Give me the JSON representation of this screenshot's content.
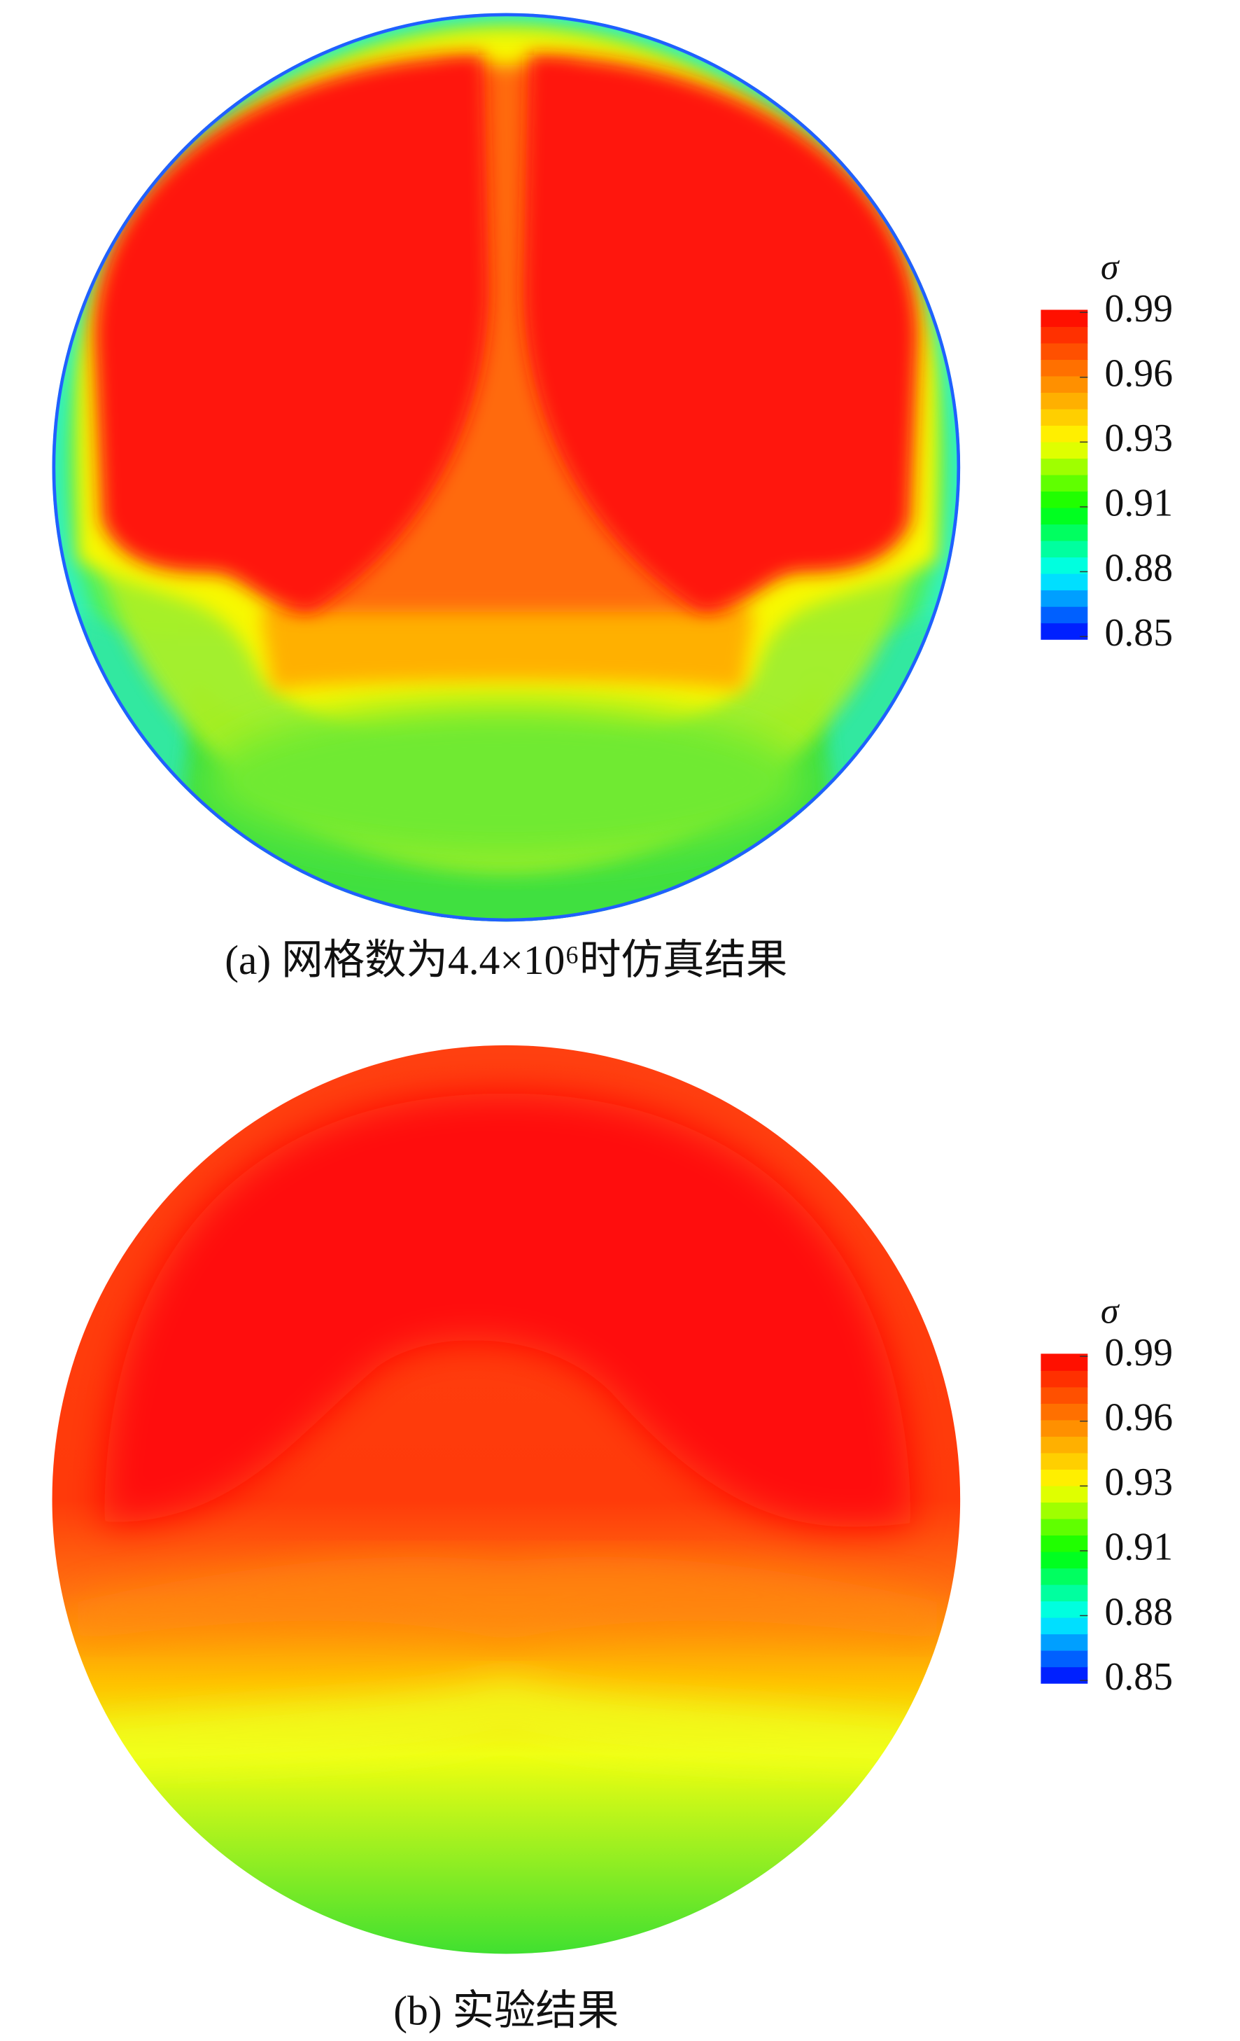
{
  "chart_data": [
    {
      "type": "contour",
      "colorbar_title": "σ",
      "caption": "(a) 网格数为4.4×10⁶时仿真结果",
      "zlim": [
        0.85,
        0.99
      ],
      "zticks": [
        {
          "value": 0.99,
          "label": "0.99"
        },
        {
          "value": 0.962,
          "label": "0.96"
        },
        {
          "value": 0.934,
          "label": "0.93"
        },
        {
          "value": 0.906,
          "label": "0.91"
        },
        {
          "value": 0.878,
          "label": "0.88"
        },
        {
          "value": 0.85,
          "label": "0.85"
        }
      ],
      "colormap": [
        "#0000ff",
        "#00ffff",
        "#00ff00",
        "#ffff00",
        "#ff8000",
        "#ff0000"
      ]
    },
    {
      "type": "contour",
      "colorbar_title": "σ",
      "caption": "(b) 实验结果",
      "zlim": [
        0.85,
        0.99
      ],
      "zticks": [
        {
          "value": 0.99,
          "label": "0.99"
        },
        {
          "value": 0.962,
          "label": "0.96"
        },
        {
          "value": 0.934,
          "label": "0.93"
        },
        {
          "value": 0.906,
          "label": "0.91"
        },
        {
          "value": 0.878,
          "label": "0.88"
        },
        {
          "value": 0.85,
          "label": "0.85"
        }
      ],
      "colormap": [
        "#0000ff",
        "#00ffff",
        "#00ff00",
        "#ffff00",
        "#ff8000",
        "#ff0000"
      ]
    }
  ]
}
